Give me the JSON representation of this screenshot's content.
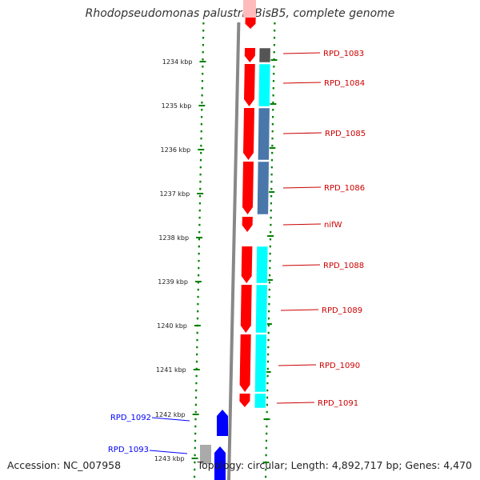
{
  "title": "Rhodopseudomonas palustris BisB5, complete genome",
  "footer": {
    "accession": "Accession: NC_007958",
    "summary": "Topology: circular; Length: 4,892,717 bp; Genes: 4,470"
  },
  "colors": {
    "forward_gene": "#ff0000",
    "reverse_gene": "#0000ff",
    "ruler": "#008000",
    "backbone": "#888888",
    "cyan": "#00ffff",
    "steelblue": "#4a77aa",
    "darkgray": "#555555",
    "gray": "#aaaaaa"
  },
  "ruler_labels": [
    "1234 kbp",
    "1235 kbp",
    "1236 kbp",
    "1237 kbp",
    "1238 kbp",
    "1239 kbp",
    "1240 kbp",
    "1241 kbp",
    "1242 kbp",
    "1243 kbp"
  ],
  "gene_labels": [
    {
      "text": "RPD_1083",
      "strand": "forward"
    },
    {
      "text": "RPD_1084",
      "strand": "forward"
    },
    {
      "text": "RPD_1085",
      "strand": "forward"
    },
    {
      "text": "RPD_1086",
      "strand": "forward"
    },
    {
      "text": "nifW",
      "strand": "forward"
    },
    {
      "text": "RPD_1088",
      "strand": "forward"
    },
    {
      "text": "RPD_1089",
      "strand": "forward"
    },
    {
      "text": "RPD_1090",
      "strand": "forward"
    },
    {
      "text": "RPD_1091",
      "strand": "forward"
    },
    {
      "text": "RPD_1092",
      "strand": "reverse"
    },
    {
      "text": "RPD_1093",
      "strand": "reverse"
    }
  ]
}
